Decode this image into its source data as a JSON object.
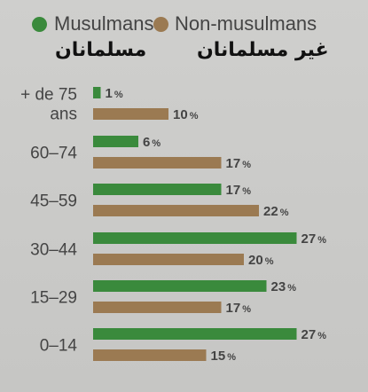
{
  "legend": {
    "items": [
      {
        "label": "Musulmans",
        "color": "#3a8a3c"
      },
      {
        "label": "Non-musulmans",
        "color": "#9b7a52"
      }
    ],
    "arabic_muslims": "مسلمانان",
    "arabic_non_muslims": "غیر مسلمانان"
  },
  "chart_data": {
    "type": "bar",
    "orientation": "horizontal",
    "value_suffix": "%",
    "categories": [
      "+ de 75 ans",
      "60–74",
      "45–59",
      "30–44",
      "15–29",
      "0–14"
    ],
    "category_lines": [
      [
        "+ de 75",
        "ans"
      ],
      [
        "60–74"
      ],
      [
        "45–59"
      ],
      [
        "30–44"
      ],
      [
        "15–29"
      ],
      [
        "0–14"
      ]
    ],
    "series": [
      {
        "name": "Musulmans",
        "color": "#3a8a3c",
        "values": [
          1,
          6,
          17,
          27,
          23,
          27
        ]
      },
      {
        "name": "Non-musulmans",
        "color": "#9b7a52",
        "values": [
          10,
          17,
          22,
          20,
          17,
          15
        ]
      }
    ],
    "xlim": [
      0,
      27
    ],
    "grid": false
  }
}
